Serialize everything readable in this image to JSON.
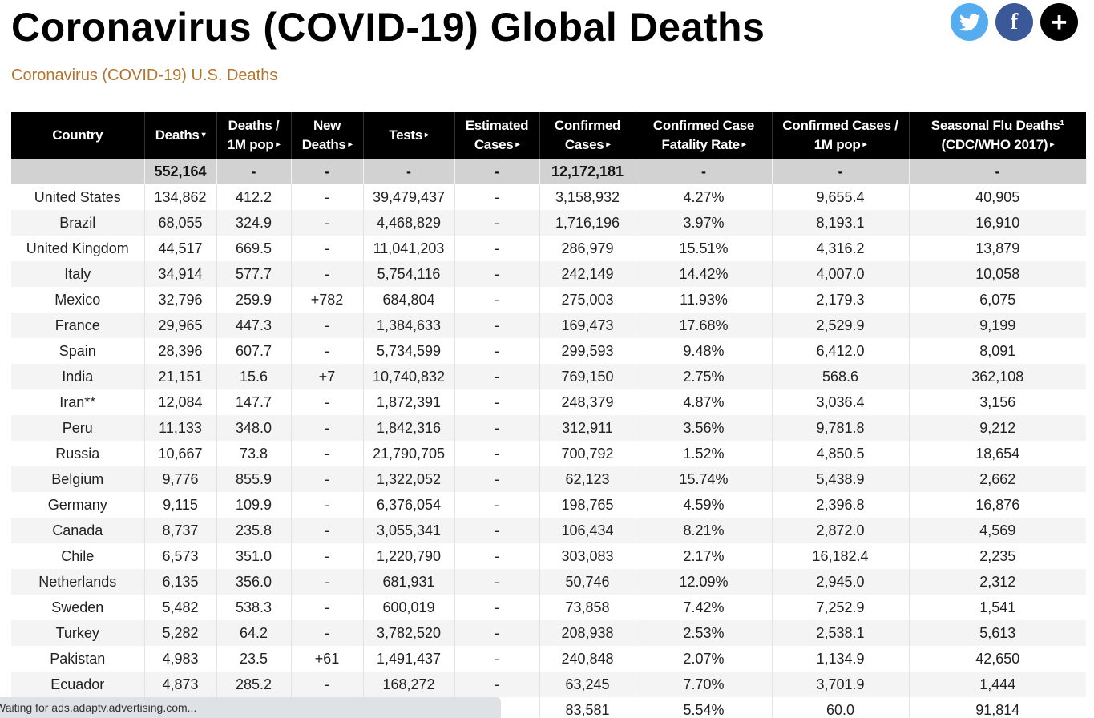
{
  "page": {
    "title": "Coronavirus (COVID-19) Global Deaths",
    "sub_link": "Coronavirus (COVID-19) U.S. Deaths"
  },
  "share": {
    "twitter": "twitter-icon",
    "facebook": "f",
    "more": "+"
  },
  "colors": {
    "header_bg": "#000000",
    "totals_bg": "#d2d2d2",
    "link": "#b5742c",
    "twitter": "#55acee",
    "facebook": "#3b5998"
  },
  "table": {
    "headers": [
      {
        "line1": "Country",
        "line2": "",
        "sort": ""
      },
      {
        "line1": "Deaths",
        "line2": "",
        "sort": "▾"
      },
      {
        "line1": "Deaths /",
        "line2": "1M pop",
        "sort": "▸"
      },
      {
        "line1": "New",
        "line2": "Deaths",
        "sort": "▸"
      },
      {
        "line1": "Tests",
        "line2": "",
        "sort": "▸"
      },
      {
        "line1": "Estimated",
        "line2": "Cases",
        "sort": "▸"
      },
      {
        "line1": "Confirmed",
        "line2": "Cases",
        "sort": "▸"
      },
      {
        "line1": "Confirmed Case",
        "line2": "Fatality Rate",
        "sort": "▸"
      },
      {
        "line1": "Confirmed Cases /",
        "line2": "1M pop",
        "sort": "▸"
      },
      {
        "line1": "Seasonal Flu Deaths¹",
        "line2": "(CDC/WHO 2017)",
        "sort": "▸"
      }
    ],
    "totals": [
      "",
      "552,164",
      "-",
      "-",
      "-",
      "-",
      "12,172,181",
      "-",
      "-",
      "-"
    ],
    "rows": [
      [
        "United States",
        "134,862",
        "412.2",
        "-",
        "39,479,437",
        "-",
        "3,158,932",
        "4.27%",
        "9,655.4",
        "40,905"
      ],
      [
        "Brazil",
        "68,055",
        "324.9",
        "-",
        "4,468,829",
        "-",
        "1,716,196",
        "3.97%",
        "8,193.1",
        "16,910"
      ],
      [
        "United Kingdom",
        "44,517",
        "669.5",
        "-",
        "11,041,203",
        "-",
        "286,979",
        "15.51%",
        "4,316.2",
        "13,879"
      ],
      [
        "Italy",
        "34,914",
        "577.7",
        "-",
        "5,754,116",
        "-",
        "242,149",
        "14.42%",
        "4,007.0",
        "10,058"
      ],
      [
        "Mexico",
        "32,796",
        "259.9",
        "+782",
        "684,804",
        "-",
        "275,003",
        "11.93%",
        "2,179.3",
        "6,075"
      ],
      [
        "France",
        "29,965",
        "447.3",
        "-",
        "1,384,633",
        "-",
        "169,473",
        "17.68%",
        "2,529.9",
        "9,199"
      ],
      [
        "Spain",
        "28,396",
        "607.7",
        "-",
        "5,734,599",
        "-",
        "299,593",
        "9.48%",
        "6,412.0",
        "8,091"
      ],
      [
        "India",
        "21,151",
        "15.6",
        "+7",
        "10,740,832",
        "-",
        "769,150",
        "2.75%",
        "568.6",
        "362,108"
      ],
      [
        "Iran**",
        "12,084",
        "147.7",
        "-",
        "1,872,391",
        "-",
        "248,379",
        "4.87%",
        "3,036.4",
        "3,156"
      ],
      [
        "Peru",
        "11,133",
        "348.0",
        "-",
        "1,842,316",
        "-",
        "312,911",
        "3.56%",
        "9,781.8",
        "9,212"
      ],
      [
        "Russia",
        "10,667",
        "73.8",
        "-",
        "21,790,705",
        "-",
        "700,792",
        "1.52%",
        "4,850.5",
        "18,654"
      ],
      [
        "Belgium",
        "9,776",
        "855.9",
        "-",
        "1,322,052",
        "-",
        "62,123",
        "15.74%",
        "5,438.9",
        "2,662"
      ],
      [
        "Germany",
        "9,115",
        "109.9",
        "-",
        "6,376,054",
        "-",
        "198,765",
        "4.59%",
        "2,396.8",
        "16,876"
      ],
      [
        "Canada",
        "8,737",
        "235.8",
        "-",
        "3,055,341",
        "-",
        "106,434",
        "8.21%",
        "2,872.0",
        "4,569"
      ],
      [
        "Chile",
        "6,573",
        "351.0",
        "-",
        "1,220,790",
        "-",
        "303,083",
        "2.17%",
        "16,182.4",
        "2,235"
      ],
      [
        "Netherlands",
        "6,135",
        "356.0",
        "-",
        "681,931",
        "-",
        "50,746",
        "12.09%",
        "2,945.0",
        "2,312"
      ],
      [
        "Sweden",
        "5,482",
        "538.3",
        "-",
        "600,019",
        "-",
        "73,858",
        "7.42%",
        "7,252.9",
        "1,541"
      ],
      [
        "Turkey",
        "5,282",
        "64.2",
        "-",
        "3,782,520",
        "-",
        "208,938",
        "2.53%",
        "2,538.1",
        "5,613"
      ],
      [
        "Pakistan",
        "4,983",
        "23.5",
        "+61",
        "1,491,437",
        "-",
        "240,848",
        "2.07%",
        "1,134.9",
        "42,650"
      ],
      [
        "Ecuador",
        "4,873",
        "285.2",
        "-",
        "168,272",
        "-",
        "63,245",
        "7.70%",
        "3,701.9",
        "1,444"
      ],
      [
        "",
        "",
        "",
        "",
        "",
        "",
        "83,581",
        "5.54%",
        "60.0",
        "91,814"
      ]
    ]
  },
  "status_bar": {
    "text": "Waiting for ads.adaptv.advertising.com..."
  }
}
